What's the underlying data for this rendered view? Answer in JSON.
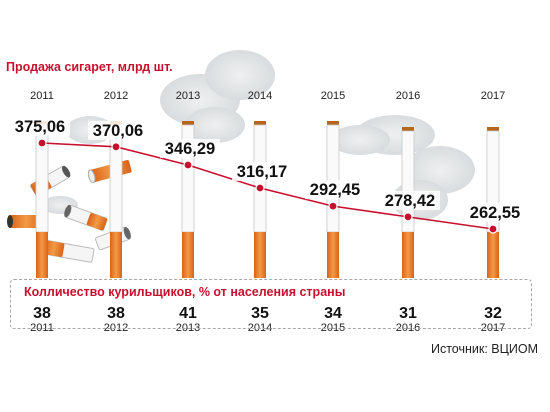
{
  "title": "Продажа сигарет, млрд шт.",
  "smokers_title": "Колличество курильщиков, % от населения страны",
  "source": "Источник: ВЦИОМ",
  "colors": {
    "accent": "#c8102e",
    "filter": "#e8772a",
    "smoke": "#e6e8ea"
  },
  "chart_data": [
    {
      "type": "line",
      "title": "Продажа сигарет, млрд шт.",
      "categories": [
        "2011",
        "2012",
        "2013",
        "2014",
        "2015",
        "2016",
        "2017"
      ],
      "values": [
        375.06,
        370.06,
        346.29,
        316.17,
        292.45,
        278.42,
        262.55
      ],
      "value_labels": [
        "375,06",
        "370,06",
        "346,29",
        "316,17",
        "292,45",
        "278,42",
        "262,55"
      ]
    },
    {
      "type": "table",
      "title": "Колличество курильщиков, % от населения страны",
      "categories": [
        "2011",
        "2012",
        "2013",
        "2014",
        "2015",
        "2016",
        "2017"
      ],
      "values": [
        38,
        38,
        41,
        35,
        34,
        31,
        32
      ]
    }
  ]
}
